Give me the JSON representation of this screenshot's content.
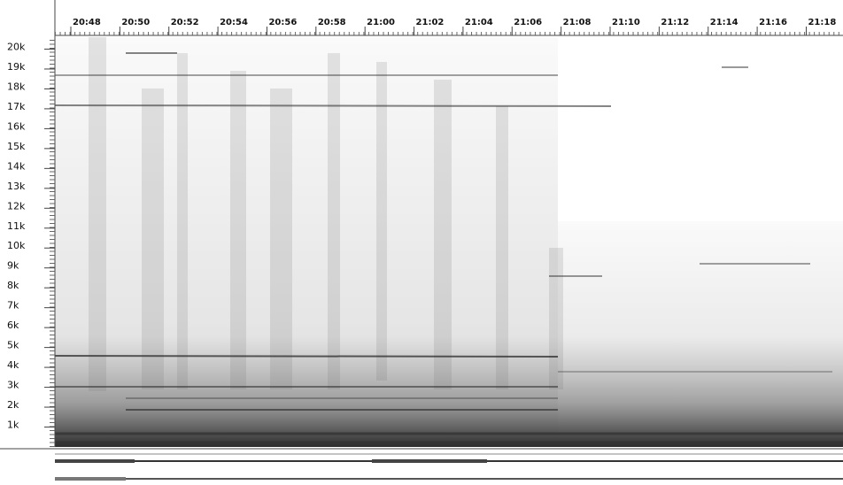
{
  "chart_data": {
    "type": "spectrogram",
    "xlim": [
      1247.35,
      1279.5
    ],
    "xticks": [
      {
        "value": 1248,
        "label": "20:48"
      },
      {
        "value": 1250,
        "label": "20:50"
      },
      {
        "value": 1252,
        "label": "20:52"
      },
      {
        "value": 1254,
        "label": "20:54"
      },
      {
        "value": 1256,
        "label": "20:56"
      },
      {
        "value": 1258,
        "label": "20:58"
      },
      {
        "value": 1260,
        "label": "21:00"
      },
      {
        "value": 1262,
        "label": "21:02"
      },
      {
        "value": 1264,
        "label": "21:04"
      },
      {
        "value": 1266,
        "label": "21:06"
      },
      {
        "value": 1268,
        "label": "21:08"
      },
      {
        "value": 1270,
        "label": "21:10"
      },
      {
        "value": 1272,
        "label": "21:12"
      },
      {
        "value": 1274,
        "label": "21:14"
      },
      {
        "value": 1276,
        "label": "21:16"
      },
      {
        "value": 1278,
        "label": "21:18"
      }
    ],
    "ylim": [
      0,
      20600
    ],
    "yticks": [
      {
        "value": 1000,
        "label": "1k"
      },
      {
        "value": 2000,
        "label": "2k"
      },
      {
        "value": 3000,
        "label": "3k"
      },
      {
        "value": 4000,
        "label": "4k"
      },
      {
        "value": 5000,
        "label": "5k"
      },
      {
        "value": 6000,
        "label": "6k"
      },
      {
        "value": 7000,
        "label": "7k"
      },
      {
        "value": 8000,
        "label": "8k"
      },
      {
        "value": 9000,
        "label": "9k"
      },
      {
        "value": 10000,
        "label": "10k"
      },
      {
        "value": 11000,
        "label": "11k"
      },
      {
        "value": 12000,
        "label": "12k"
      },
      {
        "value": 13000,
        "label": "13k"
      },
      {
        "value": 14000,
        "label": "14k"
      },
      {
        "value": 15000,
        "label": "15k"
      },
      {
        "value": 16000,
        "label": "16k"
      },
      {
        "value": 17000,
        "label": "17k"
      },
      {
        "value": 18000,
        "label": "18k"
      },
      {
        "value": 19000,
        "label": "19k"
      },
      {
        "value": 20000,
        "label": "20k"
      }
    ]
  }
}
